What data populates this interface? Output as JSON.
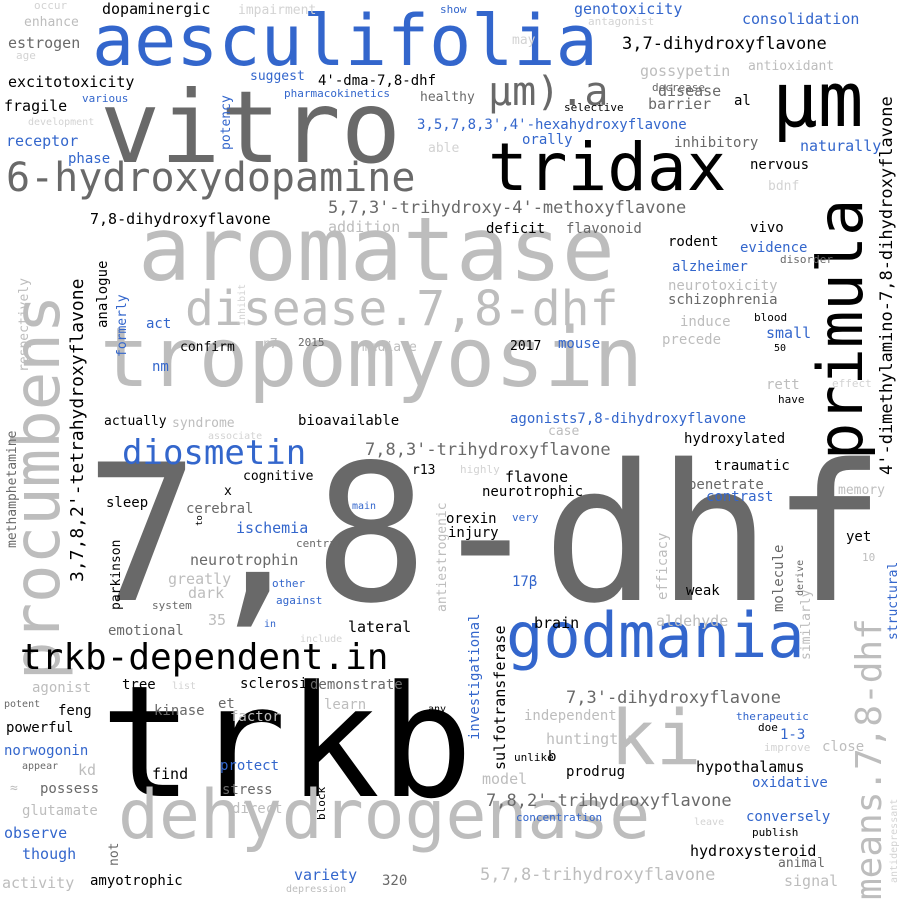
{
  "colors": {
    "dark_gray": "#696969",
    "light_gray": "#bdbdbd",
    "pale_gray": "#d3d3d3",
    "black": "#000000",
    "blue": "#3366cc"
  },
  "words": [
    {
      "text": "7,8-dhf",
      "color": "dark_gray"
    },
    {
      "text": "trkb",
      "color": "black"
    },
    {
      "text": "tropomyosin",
      "color": "light_gray"
    },
    {
      "text": "aromatase",
      "color": "light_gray"
    },
    {
      "text": "vitro",
      "color": "dark_gray"
    },
    {
      "text": "aesculifolia",
      "color": "blue"
    },
    {
      "text": "µm",
      "color": "black"
    },
    {
      "text": "primula",
      "color": "black"
    },
    {
      "text": "procumbens",
      "color": "light_gray"
    },
    {
      "text": "tridax",
      "color": "black"
    },
    {
      "text": "godmania",
      "color": "blue"
    },
    {
      "text": "dehydrogenase",
      "color": "light_gray"
    },
    {
      "text": "ki",
      "color": "light_gray"
    },
    {
      "text": "6-hydroxydopamine",
      "color": "dark_gray"
    },
    {
      "text": "disease.7,8-dhf",
      "color": "light_gray"
    },
    {
      "text": "trkb-dependent.in",
      "color": "black"
    },
    {
      "text": "means.7,8-dhf",
      "color": "light_gray"
    },
    {
      "text": "µm).a",
      "color": "dark_gray"
    },
    {
      "text": "diosmetin",
      "color": "blue"
    },
    {
      "text": "4'-dimethylamino-7,8-dihydroxyflavone",
      "color": "black"
    },
    {
      "text": "3,7,8,2'-tetrahydroxyflavone",
      "color": "black"
    },
    {
      "text": "5,7,3'-trihydroxy-4'-methoxyflavone",
      "color": "dark_gray"
    },
    {
      "text": "7,8,3'-trihydroxyflavone",
      "color": "dark_gray"
    },
    {
      "text": "7,8,2'-trihydroxyflavone",
      "color": "dark_gray"
    },
    {
      "text": "7,3'-dihydroxyflavone",
      "color": "dark_gray"
    },
    {
      "text": "5,7,8-trihydroxyflavone",
      "color": "light_gray"
    },
    {
      "text": "3,7-dihydroxyflavone",
      "color": "black"
    },
    {
      "text": "7,8-dihydroxyflavone",
      "color": "black"
    },
    {
      "text": "3,5,7,8,3',4'-hexahydroxyflavone",
      "color": "blue"
    },
    {
      "text": "agonists7,8-dihydroxyflavone",
      "color": "blue"
    },
    {
      "text": "4'-dma-7,8-dhf",
      "color": "black"
    },
    {
      "text": "dopaminergic",
      "color": "black"
    },
    {
      "text": "estrogen",
      "color": "dark_gray"
    },
    {
      "text": "excitotoxicity",
      "color": "black"
    },
    {
      "text": "fragile",
      "color": "black"
    },
    {
      "text": "receptor",
      "color": "blue"
    },
    {
      "text": "phase",
      "color": "blue"
    },
    {
      "text": "enhance",
      "color": "light_gray"
    },
    {
      "text": "occur",
      "color": "pale_gray"
    },
    {
      "text": "age",
      "color": "pale_gray"
    },
    {
      "text": "impairment",
      "color": "pale_gray"
    },
    {
      "text": "show",
      "color": "blue"
    },
    {
      "text": "genotoxicity",
      "color": "blue"
    },
    {
      "text": "antagonist",
      "color": "pale_gray"
    },
    {
      "text": "consolidation",
      "color": "blue"
    },
    {
      "text": "may",
      "color": "pale_gray"
    },
    {
      "text": "suggest",
      "color": "blue"
    },
    {
      "text": "gossypetin",
      "color": "light_gray"
    },
    {
      "text": "antioxidant",
      "color": "light_gray"
    },
    {
      "text": "decrease",
      "color": "dark_gray"
    },
    {
      "text": "disease",
      "color": "dark_gray"
    },
    {
      "text": "healthy",
      "color": "dark_gray"
    },
    {
      "text": "barrier",
      "color": "dark_gray"
    },
    {
      "text": "al",
      "color": "black"
    },
    {
      "text": "various",
      "color": "blue"
    },
    {
      "text": "pharmacokinetics",
      "color": "blue"
    },
    {
      "text": "selective",
      "color": "black"
    },
    {
      "text": "development",
      "color": "pale_gray"
    },
    {
      "text": "potency",
      "color": "blue"
    },
    {
      "text": "able",
      "color": "pale_gray"
    },
    {
      "text": "orally",
      "color": "blue"
    },
    {
      "text": "inhibitory",
      "color": "dark_gray"
    },
    {
      "text": "naturally",
      "color": "blue"
    },
    {
      "text": "nervous",
      "color": "black"
    },
    {
      "text": "bdnf",
      "color": "pale_gray"
    },
    {
      "text": "addition",
      "color": "light_gray"
    },
    {
      "text": "deficit",
      "color": "black"
    },
    {
      "text": "flavonoid",
      "color": "dark_gray"
    },
    {
      "text": "vivo",
      "color": "black"
    },
    {
      "text": "rodent",
      "color": "black"
    },
    {
      "text": "evidence",
      "color": "blue"
    },
    {
      "text": "disorder",
      "color": "dark_gray"
    },
    {
      "text": "alzheimer",
      "color": "blue"
    },
    {
      "text": "neurotoxicity",
      "color": "light_gray"
    },
    {
      "text": "schizophrenia",
      "color": "dark_gray"
    },
    {
      "text": "analogue",
      "color": "black"
    },
    {
      "text": "formerly",
      "color": "blue"
    },
    {
      "text": "inhibit",
      "color": "pale_gray"
    },
    {
      "text": "respectively",
      "color": "light_gray"
    },
    {
      "text": "act",
      "color": "blue"
    },
    {
      "text": "induce",
      "color": "light_gray"
    },
    {
      "text": "blood",
      "color": "black"
    },
    {
      "text": "small",
      "color": "blue"
    },
    {
      "text": "confirm",
      "color": "black"
    },
    {
      "text": "r7",
      "color": "light_gray"
    },
    {
      "text": "2015",
      "color": "dark_gray"
    },
    {
      "text": "mediate",
      "color": "light_gray"
    },
    {
      "text": "2017",
      "color": "black"
    },
    {
      "text": "mouse",
      "color": "blue"
    },
    {
      "text": "precede",
      "color": "light_gray"
    },
    {
      "text": "50",
      "color": "black"
    },
    {
      "text": "nm",
      "color": "blue"
    },
    {
      "text": "rett",
      "color": "light_gray"
    },
    {
      "text": "effect",
      "color": "pale_gray"
    },
    {
      "text": "have",
      "color": "black"
    },
    {
      "text": "methamphetamine",
      "color": "dark_gray"
    },
    {
      "text": "actually",
      "color": "black"
    },
    {
      "text": "syndrome",
      "color": "light_gray"
    },
    {
      "text": "bioavailable",
      "color": "black"
    },
    {
      "text": "case",
      "color": "light_gray"
    },
    {
      "text": "associate",
      "color": "pale_gray"
    },
    {
      "text": "hydroxylated",
      "color": "black"
    },
    {
      "text": "cognitive",
      "color": "black"
    },
    {
      "text": "x",
      "color": "black"
    },
    {
      "text": "r13",
      "color": "black"
    },
    {
      "text": "highly",
      "color": "pale_gray"
    },
    {
      "text": "flavone",
      "color": "black"
    },
    {
      "text": "traumatic",
      "color": "black"
    },
    {
      "text": "penetrate",
      "color": "dark_gray"
    },
    {
      "text": "memory",
      "color": "light_gray"
    },
    {
      "text": "sleep",
      "color": "black"
    },
    {
      "text": "cerebral",
      "color": "dark_gray"
    },
    {
      "text": "main",
      "color": "blue"
    },
    {
      "text": "neurotrophic",
      "color": "black"
    },
    {
      "text": "contrast",
      "color": "blue"
    },
    {
      "text": "ischemia",
      "color": "blue"
    },
    {
      "text": "to",
      "color": "black"
    },
    {
      "text": "antiestrogenic",
      "color": "light_gray"
    },
    {
      "text": "orexin",
      "color": "black"
    },
    {
      "text": "very",
      "color": "blue"
    },
    {
      "text": "injury",
      "color": "black"
    },
    {
      "text": "central",
      "color": "dark_gray"
    },
    {
      "text": "yet",
      "color": "black"
    },
    {
      "text": "neurotrophin",
      "color": "dark_gray"
    },
    {
      "text": "efficacy",
      "color": "light_gray"
    },
    {
      "text": "molecule",
      "color": "dark_gray"
    },
    {
      "text": "derive",
      "color": "dark_gray"
    },
    {
      "text": "10",
      "color": "light_gray"
    },
    {
      "text": "parkinson",
      "color": "black"
    },
    {
      "text": "greatly",
      "color": "light_gray"
    },
    {
      "text": "other",
      "color": "blue"
    },
    {
      "text": "dark",
      "color": "light_gray"
    },
    {
      "text": "17β",
      "color": "blue"
    },
    {
      "text": "weak",
      "color": "black"
    },
    {
      "text": "similarly",
      "color": "light_gray"
    },
    {
      "text": "system",
      "color": "dark_gray"
    },
    {
      "text": "against",
      "color": "blue"
    },
    {
      "text": "structural",
      "color": "blue"
    },
    {
      "text": "35",
      "color": "light_gray"
    },
    {
      "text": "in",
      "color": "blue"
    },
    {
      "text": "lateral",
      "color": "black"
    },
    {
      "text": "sulfotransferase",
      "color": "black"
    },
    {
      "text": "brain",
      "color": "black"
    },
    {
      "text": "aldehyde",
      "color": "light_gray"
    },
    {
      "text": "emotional",
      "color": "dark_gray"
    },
    {
      "text": "include",
      "color": "pale_gray"
    },
    {
      "text": "sclerosis",
      "color": "black"
    },
    {
      "text": "demonstrate",
      "color": "dark_gray"
    },
    {
      "text": "agonist",
      "color": "light_gray"
    },
    {
      "text": "tree",
      "color": "black"
    },
    {
      "text": "list",
      "color": "pale_gray"
    },
    {
      "text": "kinase",
      "color": "dark_gray"
    },
    {
      "text": "et",
      "color": "dark_gray"
    },
    {
      "text": "learn",
      "color": "light_gray"
    },
    {
      "text": "investigational",
      "color": "blue"
    },
    {
      "text": "independent",
      "color": "light_gray"
    },
    {
      "text": "potent",
      "color": "dark_gray"
    },
    {
      "text": "feng",
      "color": "black"
    },
    {
      "text": "factor",
      "color": "light_gray"
    },
    {
      "text": "any",
      "color": "black"
    },
    {
      "text": "powerful",
      "color": "black"
    },
    {
      "text": "therapeutic",
      "color": "blue"
    },
    {
      "text": "doe",
      "color": "black"
    },
    {
      "text": "norwogonin",
      "color": "blue"
    },
    {
      "text": "huntington",
      "color": "light_gray"
    },
    {
      "text": "1-3",
      "color": "blue"
    },
    {
      "text": "close",
      "color": "light_gray"
    },
    {
      "text": "improve",
      "color": "pale_gray"
    },
    {
      "text": "appear",
      "color": "dark_gray"
    },
    {
      "text": "kd",
      "color": "light_gray"
    },
    {
      "text": "unlike",
      "color": "black"
    },
    {
      "text": "b",
      "color": "black"
    },
    {
      "text": "find",
      "color": "black"
    },
    {
      "text": "protect",
      "color": "blue"
    },
    {
      "text": "prodrug",
      "color": "black"
    },
    {
      "text": "hypothalamus",
      "color": "black"
    },
    {
      "text": "≈",
      "color": "light_gray"
    },
    {
      "text": "possess",
      "color": "dark_gray"
    },
    {
      "text": "stress",
      "color": "dark_gray"
    },
    {
      "text": "model",
      "color": "light_gray"
    },
    {
      "text": "oxidative",
      "color": "blue"
    },
    {
      "text": "antidepressant",
      "color": "pale_gray"
    },
    {
      "text": "glutamate",
      "color": "light_gray"
    },
    {
      "text": "direct",
      "color": "light_gray"
    },
    {
      "text": "block",
      "color": "black"
    },
    {
      "text": "observe",
      "color": "blue"
    },
    {
      "text": "concentration",
      "color": "blue"
    },
    {
      "text": "conversely",
      "color": "blue"
    },
    {
      "text": "leave",
      "color": "pale_gray"
    },
    {
      "text": "though",
      "color": "blue"
    },
    {
      "text": "not",
      "color": "dark_gray"
    },
    {
      "text": "publish",
      "color": "black"
    },
    {
      "text": "hydroxysteroid",
      "color": "black"
    },
    {
      "text": "animal",
      "color": "dark_gray"
    },
    {
      "text": "activity",
      "color": "light_gray"
    },
    {
      "text": "amyotrophic",
      "color": "black"
    },
    {
      "text": "depression",
      "color": "light_gray"
    },
    {
      "text": "variety",
      "color": "blue"
    },
    {
      "text": "320",
      "color": "dark_gray"
    },
    {
      "text": "signal",
      "color": "light_gray"
    }
  ]
}
